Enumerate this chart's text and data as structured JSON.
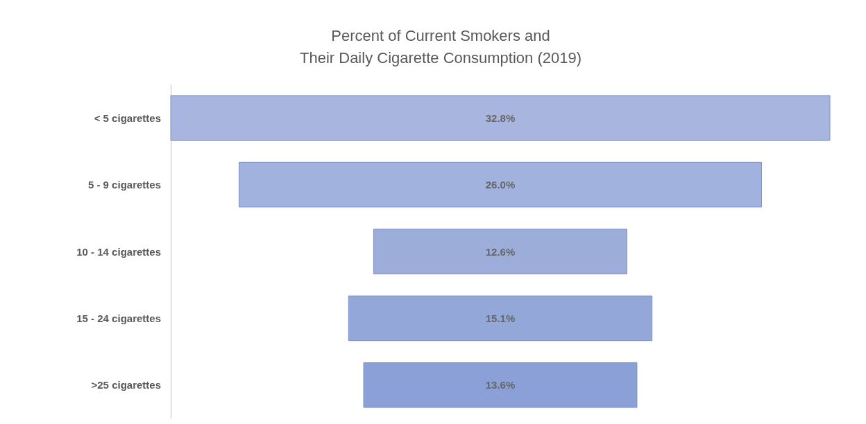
{
  "chart_data": {
    "type": "other",
    "title": "Percent of Current Smokers and\nTheir Daily Cigarette Consumption (2019)",
    "categories": [
      "< 5 cigarettes",
      "5 - 9 cigarettes",
      "10 - 14 cigarettes",
      "15 - 24 cigarettes",
      ">25 cigarettes"
    ],
    "values": [
      32.8,
      26.0,
      12.6,
      15.1,
      13.6
    ],
    "value_labels": [
      "32.8%",
      "26.0%",
      "12.6%",
      "15.1%",
      "13.6%"
    ],
    "colors": [
      "#a8b5df",
      "#a2b2de",
      "#9cadda",
      "#93a7d9",
      "#8aa0d7"
    ]
  }
}
